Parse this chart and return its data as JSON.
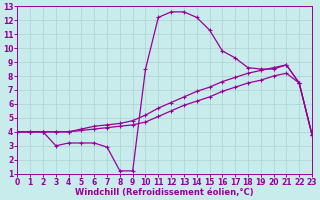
{
  "xlabel": "Windchill (Refroidissement éolien,°C)",
  "xlim": [
    0,
    23
  ],
  "ylim": [
    1,
    13
  ],
  "xticks": [
    0,
    1,
    2,
    3,
    4,
    5,
    6,
    7,
    8,
    9,
    10,
    11,
    12,
    13,
    14,
    15,
    16,
    17,
    18,
    19,
    20,
    21,
    22,
    23
  ],
  "yticks": [
    1,
    2,
    3,
    4,
    5,
    6,
    7,
    8,
    9,
    10,
    11,
    12,
    13
  ],
  "bg_color": "#c8ecec",
  "line_color": "#990099",
  "grid_color": "#b0d0d0",
  "line1_x": [
    0,
    1,
    2,
    3,
    4,
    5,
    6,
    7,
    8,
    9,
    10,
    11,
    12,
    13,
    14,
    15,
    16,
    17,
    18,
    19,
    20,
    21,
    22,
    23
  ],
  "line1_y": [
    4.0,
    4.0,
    4.0,
    4.0,
    4.0,
    4.1,
    4.2,
    4.3,
    4.4,
    4.5,
    4.7,
    5.1,
    5.5,
    5.9,
    6.2,
    6.5,
    6.9,
    7.2,
    7.5,
    7.7,
    8.0,
    8.2,
    7.5,
    3.8
  ],
  "line2_x": [
    0,
    1,
    2,
    3,
    4,
    5,
    6,
    7,
    8,
    9,
    10,
    11,
    12,
    13,
    14,
    15,
    16,
    17,
    18,
    19,
    20,
    21,
    22,
    23
  ],
  "line2_y": [
    4.0,
    4.0,
    4.0,
    4.0,
    4.0,
    4.2,
    4.4,
    4.5,
    4.6,
    4.8,
    5.2,
    5.7,
    6.1,
    6.5,
    6.9,
    7.2,
    7.6,
    7.9,
    8.2,
    8.4,
    8.6,
    8.8,
    7.5,
    3.8
  ],
  "line3_x": [
    0,
    1,
    2,
    3,
    4,
    5,
    6,
    7,
    8,
    9,
    10,
    11,
    12,
    13,
    14,
    15,
    16,
    17,
    18,
    19,
    20,
    21,
    22,
    23
  ],
  "line3_y": [
    4.0,
    4.0,
    4.0,
    3.0,
    3.2,
    3.2,
    3.2,
    2.9,
    1.2,
    1.2,
    8.5,
    12.2,
    12.6,
    12.6,
    12.2,
    11.3,
    9.8,
    9.3,
    8.6,
    8.5,
    8.5,
    8.8,
    7.5,
    3.8
  ],
  "figwidth": 3.2,
  "figheight": 2.0,
  "dpi": 100,
  "tick_fontsize": 5.5,
  "xlabel_fontsize": 6,
  "linewidth": 0.9,
  "markersize": 2.5,
  "marker": "+"
}
